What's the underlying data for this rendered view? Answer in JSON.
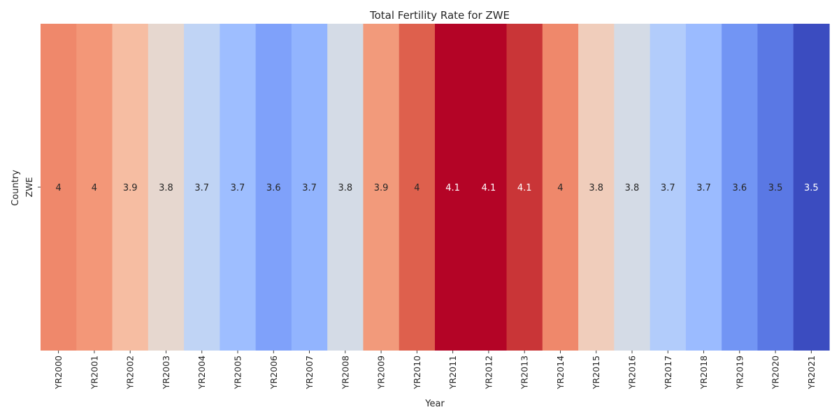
{
  "chart_data": {
    "type": "heatmap",
    "title": "Total Fertility Rate for ZWE",
    "xlabel": "Year",
    "ylabel": "Country",
    "rows": [
      "ZWE"
    ],
    "columns": [
      "YR2000",
      "YR2001",
      "YR2002",
      "YR2003",
      "YR2004",
      "YR2005",
      "YR2006",
      "YR2007",
      "YR2008",
      "YR2009",
      "YR2010",
      "YR2011",
      "YR2012",
      "YR2013",
      "YR2014",
      "YR2015",
      "YR2016",
      "YR2017",
      "YR2018",
      "YR2019",
      "YR2020",
      "YR2021"
    ],
    "values": [
      [
        4,
        4,
        3.9,
        3.8,
        3.7,
        3.7,
        3.6,
        3.7,
        3.8,
        3.9,
        4,
        4.1,
        4.1,
        4.1,
        4,
        3.8,
        3.8,
        3.7,
        3.7,
        3.6,
        3.5,
        3.5
      ]
    ],
    "cell_colors": [
      "#ef886b",
      "#f39778",
      "#f6bda2",
      "#e6d7cf",
      "#c0d4f5",
      "#9ebeff",
      "#7fa1fa",
      "#92b4fe",
      "#d4dbe6",
      "#f29a7b",
      "#de604d",
      "#b40426",
      "#b40426",
      "#c93537",
      "#ef886b",
      "#f0cdbb",
      "#d4dbe6",
      "#b2ccfb",
      "#9bbbff",
      "#7295f4",
      "#5a78e4",
      "#3b4cc0"
    ],
    "colormap": "coolwarm",
    "colorbar": false,
    "annotations": true
  }
}
